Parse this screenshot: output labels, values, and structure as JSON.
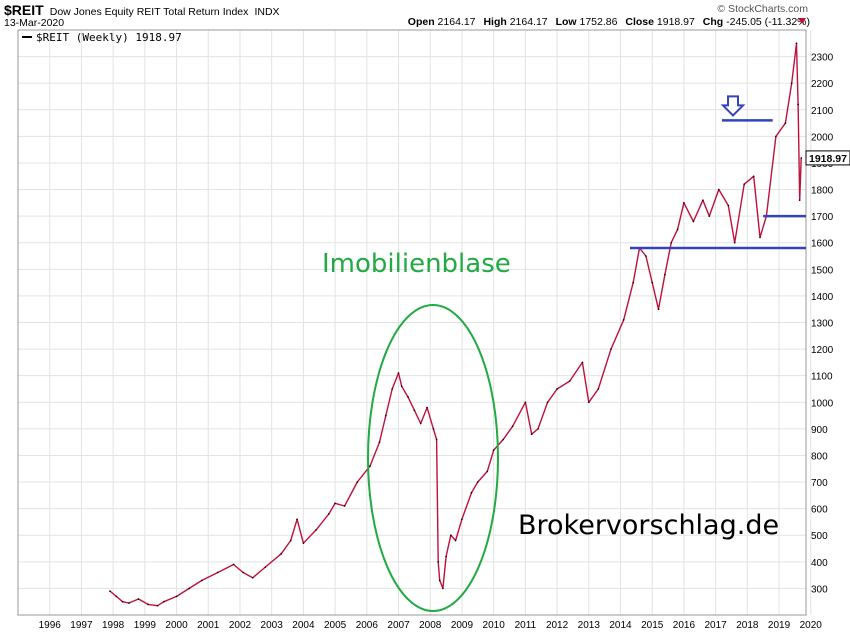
{
  "header": {
    "symbol": "$REIT",
    "description": "Dow Jones Equity REIT Total Return Index",
    "exchange": "INDX",
    "date": "13-Mar-2020",
    "brand": "© StockCharts.com",
    "open_label": "Open",
    "open": "2164.17",
    "high_label": "High",
    "high": "2164.17",
    "low_label": "Low",
    "low": "1752.86",
    "close_label": "Close",
    "close": "1918.97",
    "chg_label": "Chg",
    "chg": "-245.05 (-11.32%)"
  },
  "colors": {
    "price_line": "#c0103a",
    "price_line_dark": "#000000",
    "support_line": "#3344bb",
    "ellipse": "#22aa44",
    "annotation_green": "#22aa44"
  },
  "chart_data": {
    "type": "line",
    "series": [
      {
        "name": "$REIT (Weekly) 1918.97",
        "x": [
          1998.4,
          1998.6,
          1998.8,
          1999.0,
          1999.3,
          1999.6,
          1999.9,
          2000.1,
          2000.5,
          2000.9,
          2001.3,
          2001.8,
          2002.3,
          2002.6,
          2002.9,
          2003.3,
          2003.8,
          2004.1,
          2004.3,
          2004.5,
          2004.9,
          2005.3,
          2005.5,
          2005.8,
          2006.2,
          2006.6,
          2006.9,
          2007.1,
          2007.3,
          2007.5,
          2007.6,
          2007.8,
          2008.0,
          2008.2,
          2008.4,
          2008.6,
          2008.7,
          2008.75,
          2008.8,
          2008.9,
          2009.0,
          2009.15,
          2009.3,
          2009.5,
          2009.8,
          2010.0,
          2010.3,
          2010.5,
          2010.8,
          2011.1,
          2011.5,
          2011.7,
          2011.9,
          2012.2,
          2012.5,
          2012.9,
          2013.3,
          2013.5,
          2013.8,
          2014.2,
          2014.6,
          2014.9,
          2015.1,
          2015.3,
          2015.5,
          2015.7,
          2015.9,
          2016.1,
          2016.3,
          2016.5,
          2016.8,
          2017.1,
          2017.3,
          2017.6,
          2017.9,
          2018.1,
          2018.4,
          2018.7,
          2018.9,
          2019.1,
          2019.4,
          2019.7,
          2019.9,
          2020.05,
          2020.1,
          2020.15,
          2020.2
        ],
        "y": [
          290,
          270,
          250,
          245,
          260,
          240,
          235,
          250,
          270,
          300,
          330,
          360,
          390,
          360,
          340,
          380,
          430,
          480,
          560,
          470,
          520,
          580,
          620,
          610,
          700,
          760,
          850,
          950,
          1050,
          1110,
          1060,
          1020,
          970,
          920,
          980,
          900,
          860,
          400,
          330,
          300,
          420,
          500,
          480,
          560,
          660,
          700,
          740,
          820,
          860,
          910,
          1000,
          880,
          900,
          1000,
          1050,
          1080,
          1150,
          1000,
          1050,
          1200,
          1310,
          1450,
          1580,
          1550,
          1450,
          1350,
          1480,
          1600,
          1650,
          1750,
          1680,
          1760,
          1700,
          1800,
          1740,
          1600,
          1820,
          1850,
          1620,
          1700,
          2000,
          2050,
          2200,
          2350,
          2120,
          1760,
          1918.97
        ]
      }
    ],
    "xlim": [
      1995.5,
      2020.35
    ],
    "ylim": [
      200,
      2400
    ],
    "x_ticks": [
      "1996",
      "1997",
      "1998",
      "1999",
      "2000",
      "2001",
      "2002",
      "2003",
      "2004",
      "2005",
      "2006",
      "2007",
      "2008",
      "2009",
      "2010",
      "2011",
      "2012",
      "2013",
      "2014",
      "2015",
      "2016",
      "2017",
      "2018",
      "2019",
      "2020"
    ],
    "y_ticks": [
      "300",
      "400",
      "500",
      "600",
      "700",
      "800",
      "900",
      "1000",
      "1100",
      "1200",
      "1300",
      "1400",
      "1500",
      "1600",
      "1700",
      "1800",
      "1900",
      "2000",
      "2100",
      "2200",
      "2300"
    ],
    "last_value_label": "1918.97",
    "grid": true,
    "annotations": {
      "ellipse_label": "Imobilienblase",
      "watermark": "Brokervorschlag.de",
      "support_levels": [
        2060,
        1700,
        1580
      ]
    }
  }
}
